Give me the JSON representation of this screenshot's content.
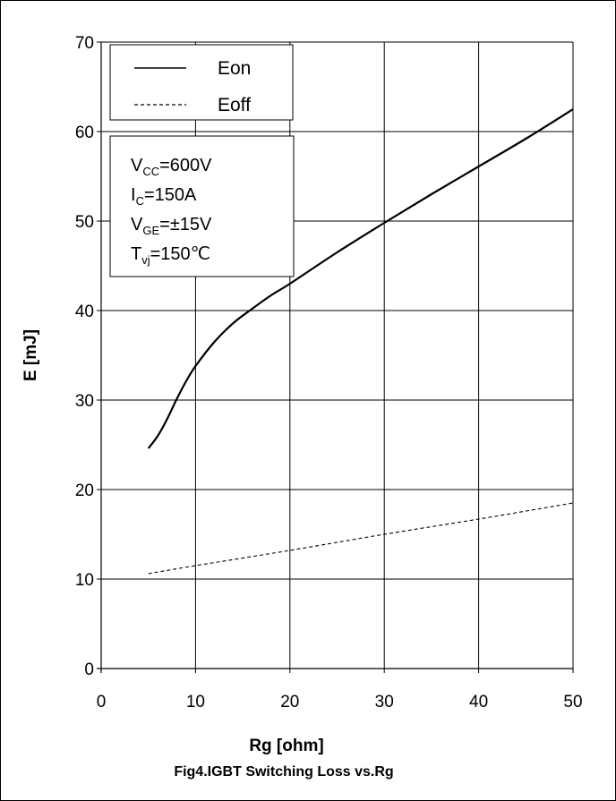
{
  "chart_data": {
    "type": "line",
    "xlabel": "Rg  [ohm]",
    "ylabel": "E  [mJ]",
    "caption": "Fig4.IGBT Switching Loss vs.Rg",
    "xlim": [
      0,
      50
    ],
    "ylim": [
      0,
      70
    ],
    "x_ticks": [
      "0",
      "10",
      "20",
      "30",
      "40",
      "50"
    ],
    "y_ticks": [
      "0",
      "10",
      "20",
      "30",
      "40",
      "50",
      "60",
      "70"
    ],
    "grid": true,
    "legend_position": "top-left",
    "series": [
      {
        "name": "Eon",
        "style": "solid",
        "color": "#000000",
        "x": [
          5,
          6,
          7,
          8,
          9,
          10,
          12,
          14,
          16,
          18,
          20,
          25,
          30,
          35,
          40,
          45,
          50
        ],
        "y": [
          24.6,
          26.0,
          27.9,
          30.1,
          32.1,
          33.8,
          36.5,
          38.6,
          40.2,
          41.7,
          43.0,
          46.5,
          49.8,
          53.0,
          56.1,
          59.2,
          62.5
        ]
      },
      {
        "name": "Eoff",
        "style": "dashed",
        "color": "#000000",
        "x": [
          5,
          10,
          20,
          30,
          40,
          50
        ],
        "y": [
          10.6,
          11.5,
          13.2,
          15.0,
          16.7,
          18.5
        ]
      }
    ],
    "conditions": [
      {
        "main": "V",
        "sub": "CC",
        "rest": "=600V"
      },
      {
        "main": "I",
        "sub": "C",
        "rest": "=150A"
      },
      {
        "main": "V",
        "sub": "GE",
        "rest": "=±15V"
      },
      {
        "main": "T",
        "sub": "vj",
        "rest": "=150℃"
      }
    ]
  }
}
